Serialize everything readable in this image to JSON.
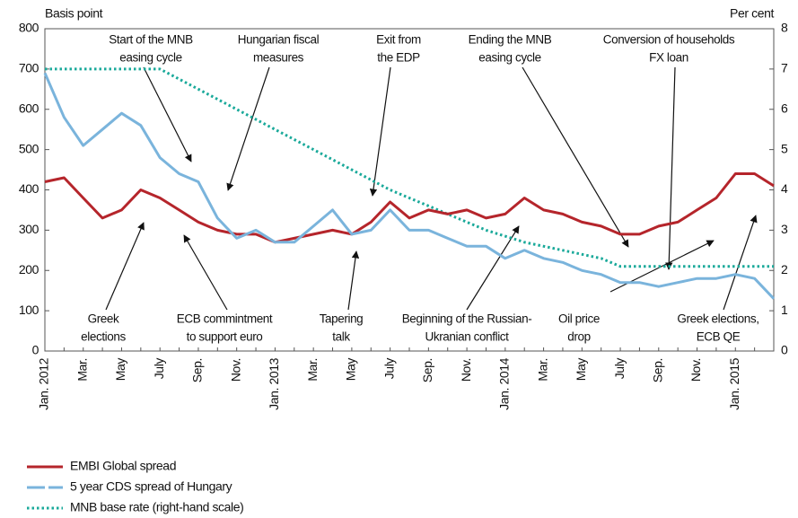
{
  "chart_data": {
    "type": "line",
    "y_label": "Basis point",
    "y2_label": "Per cent",
    "categories": [
      "Jan. 2012",
      null,
      "Mar.",
      null,
      "May",
      null,
      "July",
      null,
      "Sep.",
      null,
      "Nov.",
      null,
      "Jan. 2013",
      null,
      "Mar.",
      null,
      "May",
      null,
      "July",
      null,
      "Sep.",
      null,
      "Nov.",
      null,
      "Jan. 2014",
      null,
      "Mar.",
      null,
      "May",
      null,
      "July",
      null,
      "Sep.",
      null,
      "Nov.",
      null,
      "Jan. 2015",
      null,
      null
    ],
    "series": [
      {
        "name": "EMBI Global spread",
        "color": "#b5252b",
        "style": "solid",
        "values": [
          420,
          430,
          380,
          330,
          350,
          400,
          380,
          350,
          320,
          300,
          290,
          290,
          270,
          280,
          290,
          300,
          290,
          320,
          370,
          330,
          350,
          340,
          350,
          330,
          340,
          380,
          350,
          340,
          320,
          310,
          290,
          290,
          310,
          320,
          350,
          380,
          440,
          440,
          410
        ]
      },
      {
        "name": "5 year CDS spread of Hungary",
        "color": "#7ab4dc",
        "style": "solid",
        "values": [
          690,
          580,
          510,
          550,
          590,
          560,
          480,
          440,
          420,
          330,
          280,
          300,
          270,
          270,
          310,
          350,
          290,
          300,
          350,
          300,
          300,
          280,
          260,
          260,
          230,
          250,
          230,
          220,
          200,
          190,
          170,
          170,
          160,
          170,
          180,
          180,
          190,
          180,
          130
        ]
      },
      {
        "name": "MNB base rate (right-hand scale)",
        "color": "#1aa99a",
        "style": "dotted",
        "axis": "y2",
        "values": [
          7,
          7,
          7,
          7,
          7,
          7,
          7,
          6.75,
          6.5,
          6.25,
          6,
          5.75,
          5.5,
          5.25,
          5,
          4.75,
          4.5,
          4.25,
          4,
          3.8,
          3.6,
          3.4,
          3.2,
          3,
          2.85,
          2.7,
          2.6,
          2.5,
          2.4,
          2.3,
          2.1,
          2.1,
          2.1,
          2.1,
          2.1,
          2.1,
          2.1,
          2.1,
          2.1
        ]
      }
    ],
    "ylim": [
      0,
      800
    ],
    "yticks": [
      0,
      100,
      200,
      300,
      400,
      500,
      600,
      700,
      800
    ],
    "y2lim": [
      0,
      8
    ],
    "y2ticks": [
      0,
      1,
      2,
      3,
      4,
      5,
      6,
      7,
      8
    ],
    "grid": false,
    "legend": "bottom",
    "annotations": [
      {
        "text": [
          "Start of the MNB",
          "easing cycle"
        ]
      },
      {
        "text": [
          "Hungarian fiscal",
          "measures"
        ]
      },
      {
        "text": [
          "Exit from",
          "the EDP"
        ]
      },
      {
        "text": [
          "Ending the MNB",
          "easing cycle"
        ]
      },
      {
        "text": [
          "Conversion of households",
          "FX loan"
        ]
      },
      {
        "text": [
          "Greek",
          "elections"
        ]
      },
      {
        "text": [
          "ECB commintment",
          "to support euro"
        ]
      },
      {
        "text": [
          "Tapering",
          "talk"
        ]
      },
      {
        "text": [
          "Beginning of the Russian-",
          "Ukranian conflict"
        ]
      },
      {
        "text": [
          "Oil price",
          "drop"
        ]
      },
      {
        "text": [
          "Greek elections,",
          "ECB QE"
        ]
      }
    ]
  }
}
